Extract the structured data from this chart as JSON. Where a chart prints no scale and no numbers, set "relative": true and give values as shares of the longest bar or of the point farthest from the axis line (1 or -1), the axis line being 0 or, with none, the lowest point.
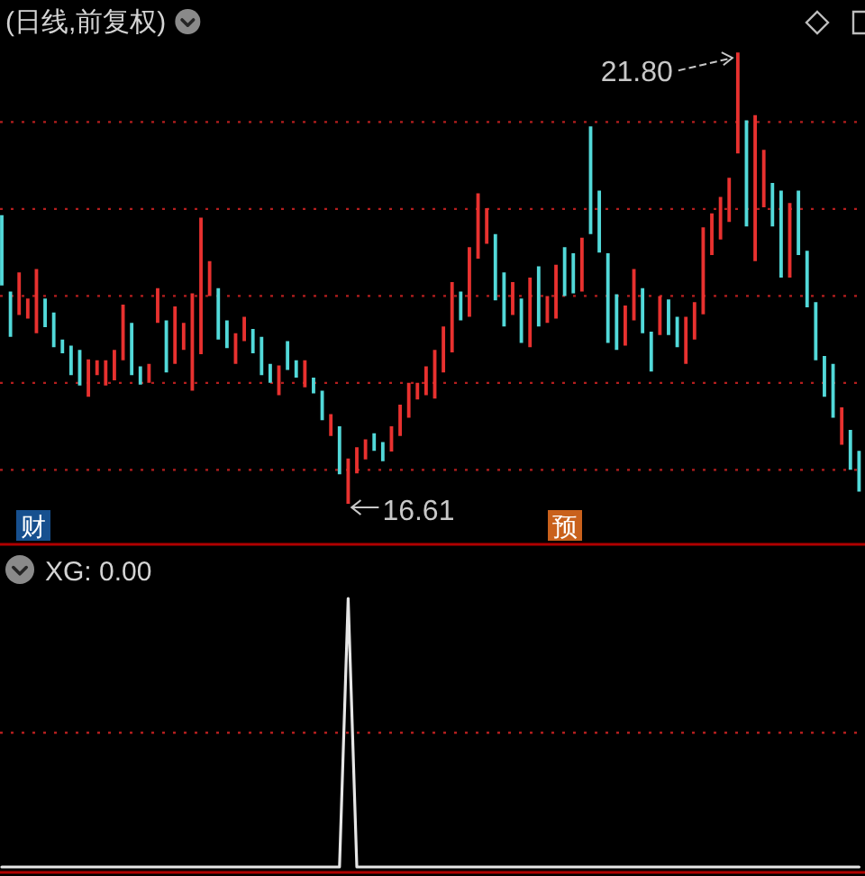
{
  "chart_data": [
    {
      "type": "candlestick",
      "title": "(日线,前复权)",
      "yticks": [
        {
          "value": 17,
          "label": null
        },
        {
          "value": 18,
          "label": null
        },
        {
          "value": 19,
          "label": null
        },
        {
          "value": 20,
          "label": null
        },
        {
          "value": 21,
          "label": null
        }
      ],
      "grid": "y",
      "annotations": [
        "21.80",
        "16.61",
        "财",
        "预"
      ],
      "categories": [
        null,
        null,
        null,
        null,
        null,
        null,
        null,
        null,
        null,
        null,
        null,
        null,
        null,
        null,
        null,
        null,
        null,
        null,
        null,
        null,
        null,
        null,
        null,
        null,
        null,
        null,
        null,
        null,
        null,
        null,
        null,
        null,
        null,
        null,
        null,
        null,
        null,
        null,
        null,
        null,
        null,
        null,
        null,
        null,
        null,
        null,
        null,
        null,
        null,
        null,
        null,
        null,
        null,
        null,
        null,
        null,
        null,
        null,
        null,
        null,
        null,
        null,
        null,
        null,
        null,
        null,
        null,
        null,
        null,
        null,
        null,
        null,
        null,
        null,
        null,
        null,
        null,
        null,
        null,
        null,
        null,
        null,
        null,
        null,
        null,
        null,
        null,
        null,
        null,
        null,
        null,
        null,
        null,
        null,
        null,
        null,
        null,
        null,
        null,
        null
      ],
      "ohlc": [
        [
          19.93,
          19.93,
          19.12,
          19.12
        ],
        [
          19.05,
          19.05,
          18.53,
          18.53
        ],
        [
          18.78,
          19.27,
          18.78,
          19.27
        ],
        [
          18.74,
          18.97,
          18.74,
          18.97
        ],
        [
          18.57,
          19.31,
          18.57,
          19.31
        ],
        [
          18.97,
          18.97,
          18.64,
          18.64
        ],
        [
          18.81,
          18.81,
          18.41,
          18.41
        ],
        [
          18.5,
          18.5,
          18.34,
          18.34
        ],
        [
          18.43,
          18.43,
          18.09,
          18.09
        ],
        [
          18.38,
          18.38,
          17.97,
          17.97
        ],
        [
          17.84,
          18.27,
          17.84,
          18.27
        ],
        [
          18.09,
          18.26,
          18.09,
          18.26
        ],
        [
          17.97,
          18.26,
          17.97,
          18.26
        ],
        [
          18.03,
          18.38,
          18.03,
          18.38
        ],
        [
          18.26,
          18.9,
          18.26,
          18.9
        ],
        [
          18.69,
          18.69,
          18.09,
          18.09
        ],
        [
          18.19,
          18.19,
          17.98,
          17.98
        ],
        [
          18.0,
          18.22,
          18.0,
          18.22
        ],
        [
          18.69,
          19.09,
          18.69,
          19.09
        ],
        [
          18.72,
          18.72,
          18.12,
          18.12
        ],
        [
          18.22,
          18.88,
          18.22,
          18.88
        ],
        [
          18.38,
          18.69,
          18.38,
          18.69
        ],
        [
          17.91,
          19.03,
          17.91,
          19.03
        ],
        [
          18.33,
          19.9,
          18.33,
          19.9
        ],
        [
          19.0,
          19.4,
          19.0,
          19.4
        ],
        [
          19.09,
          19.09,
          18.5,
          18.5
        ],
        [
          18.72,
          18.72,
          18.4,
          18.4
        ],
        [
          18.22,
          18.57,
          18.22,
          18.57
        ],
        [
          18.48,
          18.76,
          18.48,
          18.76
        ],
        [
          18.62,
          18.62,
          18.34,
          18.34
        ],
        [
          18.53,
          18.53,
          18.09,
          18.09
        ],
        [
          18.22,
          18.22,
          18.0,
          18.0
        ],
        [
          17.86,
          18.2,
          17.86,
          18.2
        ],
        [
          18.48,
          18.48,
          18.15,
          18.15
        ],
        [
          18.26,
          18.26,
          18.06,
          18.06
        ],
        [
          17.95,
          18.26,
          17.95,
          18.26
        ],
        [
          18.06,
          18.06,
          17.88,
          17.88
        ],
        [
          17.91,
          17.91,
          17.57,
          17.57
        ],
        [
          17.39,
          17.64,
          17.39,
          17.64
        ],
        [
          17.5,
          17.5,
          16.95,
          16.95
        ],
        [
          16.61,
          17.13,
          16.61,
          17.13
        ],
        [
          16.96,
          17.26,
          16.96,
          17.26
        ],
        [
          17.12,
          17.35,
          17.12,
          17.35
        ],
        [
          17.42,
          17.42,
          17.22,
          17.22
        ],
        [
          17.32,
          17.32,
          17.1,
          17.1
        ],
        [
          17.21,
          17.5,
          17.21,
          17.5
        ],
        [
          17.39,
          17.75,
          17.39,
          17.75
        ],
        [
          17.6,
          18.0,
          17.6,
          18.0
        ],
        [
          17.81,
          18.0,
          17.81,
          18.0
        ],
        [
          17.86,
          18.19,
          17.86,
          18.19
        ],
        [
          17.82,
          18.38,
          17.82,
          18.38
        ],
        [
          18.12,
          18.65,
          18.12,
          18.65
        ],
        [
          18.35,
          19.16,
          18.35,
          19.16
        ],
        [
          19.05,
          19.05,
          18.72,
          18.72
        ],
        [
          18.76,
          19.56,
          18.76,
          19.56
        ],
        [
          19.43,
          20.18,
          19.43,
          20.18
        ],
        [
          19.6,
          20.01,
          19.6,
          20.01
        ],
        [
          19.71,
          19.71,
          18.95,
          18.95
        ],
        [
          19.27,
          19.27,
          18.65,
          18.65
        ],
        [
          18.78,
          19.16,
          18.78,
          19.16
        ],
        [
          18.97,
          18.97,
          18.46,
          18.46
        ],
        [
          18.41,
          19.21,
          18.41,
          19.21
        ],
        [
          19.34,
          19.34,
          18.65,
          18.65
        ],
        [
          18.69,
          19.0,
          18.69,
          19.0
        ],
        [
          18.74,
          19.36,
          18.74,
          19.36
        ],
        [
          19.56,
          19.56,
          19.0,
          19.0
        ],
        [
          19.49,
          19.49,
          19.03,
          19.03
        ],
        [
          19.05,
          19.67,
          19.05,
          19.67
        ],
        [
          20.95,
          20.95,
          19.71,
          19.71
        ],
        [
          20.21,
          20.21,
          19.5,
          19.5
        ],
        [
          19.49,
          19.49,
          18.46,
          18.46
        ],
        [
          19.02,
          19.02,
          18.38,
          18.38
        ],
        [
          18.43,
          18.89,
          18.43,
          18.89
        ],
        [
          18.72,
          19.31,
          18.72,
          19.31
        ],
        [
          19.09,
          19.09,
          18.57,
          18.57
        ],
        [
          18.59,
          18.59,
          18.13,
          18.13
        ],
        [
          18.55,
          19.0,
          18.55,
          19.0
        ],
        [
          18.96,
          18.96,
          18.55,
          18.55
        ],
        [
          18.76,
          18.76,
          18.41,
          18.41
        ],
        [
          18.22,
          18.76,
          18.22,
          18.76
        ],
        [
          18.5,
          18.93,
          18.5,
          18.93
        ],
        [
          18.79,
          19.79,
          18.79,
          19.79
        ],
        [
          19.47,
          19.95,
          19.47,
          19.95
        ],
        [
          19.65,
          20.14,
          19.65,
          20.14
        ],
        [
          19.85,
          20.36,
          19.85,
          20.36
        ],
        [
          20.64,
          21.8,
          20.64,
          21.8
        ],
        [
          21.02,
          21.02,
          19.8,
          19.8
        ],
        [
          19.4,
          21.08,
          19.4,
          21.08
        ],
        [
          20.02,
          20.68,
          20.02,
          20.68
        ],
        [
          20.3,
          20.3,
          19.8,
          19.8
        ],
        [
          20.21,
          20.21,
          19.21,
          19.21
        ],
        [
          19.21,
          20.07,
          19.21,
          20.07
        ],
        [
          20.21,
          20.21,
          19.47,
          19.47
        ],
        [
          19.52,
          19.52,
          18.87,
          18.87
        ],
        [
          18.93,
          18.93,
          18.26,
          18.26
        ],
        [
          18.31,
          18.31,
          17.84,
          17.84
        ],
        [
          18.22,
          18.22,
          17.6,
          17.6
        ],
        [
          17.29,
          17.72,
          17.29,
          17.72
        ],
        [
          17.46,
          17.46,
          17.0,
          17.0
        ],
        [
          17.22,
          17.22,
          16.75,
          16.75
        ]
      ],
      "colors": [
        "#52d9d9",
        "#52d9d9",
        "#e8312f",
        "#e8312f",
        "#e8312f",
        "#52d9d9",
        "#52d9d9",
        "#52d9d9",
        "#52d9d9",
        "#52d9d9",
        "#e8312f",
        "#e8312f",
        "#e8312f",
        "#e8312f",
        "#e8312f",
        "#52d9d9",
        "#52d9d9",
        "#e8312f",
        "#e8312f",
        "#52d9d9",
        "#e8312f",
        "#e8312f",
        "#e8312f",
        "#e8312f",
        "#e8312f",
        "#52d9d9",
        "#52d9d9",
        "#e8312f",
        "#e8312f",
        "#52d9d9",
        "#52d9d9",
        "#52d9d9",
        "#e8312f",
        "#52d9d9",
        "#52d9d9",
        "#e8312f",
        "#52d9d9",
        "#52d9d9",
        "#e8312f",
        "#52d9d9",
        "#e8312f",
        "#e8312f",
        "#e8312f",
        "#52d9d9",
        "#52d9d9",
        "#e8312f",
        "#e8312f",
        "#e8312f",
        "#e8312f",
        "#e8312f",
        "#e8312f",
        "#e8312f",
        "#e8312f",
        "#52d9d9",
        "#e8312f",
        "#e8312f",
        "#e8312f",
        "#52d9d9",
        "#52d9d9",
        "#e8312f",
        "#52d9d9",
        "#e8312f",
        "#52d9d9",
        "#e8312f",
        "#e8312f",
        "#52d9d9",
        "#52d9d9",
        "#e8312f",
        "#52d9d9",
        "#52d9d9",
        "#52d9d9",
        "#52d9d9",
        "#e8312f",
        "#e8312f",
        "#52d9d9",
        "#52d9d9",
        "#e8312f",
        "#52d9d9",
        "#52d9d9",
        "#e8312f",
        "#e8312f",
        "#e8312f",
        "#e8312f",
        "#e8312f",
        "#e8312f",
        "#e8312f",
        "#52d9d9",
        "#e8312f",
        "#e8312f",
        "#52d9d9",
        "#52d9d9",
        "#e8312f",
        "#52d9d9",
        "#52d9d9",
        "#52d9d9",
        "#52d9d9",
        "#52d9d9",
        "#e8312f",
        "#52d9d9",
        "#52d9d9"
      ]
    },
    {
      "type": "line",
      "title": "XG: 0.00",
      "relative": true,
      "categories": [
        null,
        null,
        null,
        null,
        null,
        null,
        null,
        null,
        null,
        null,
        null,
        null,
        null,
        null,
        null,
        null,
        null,
        null,
        null,
        null,
        null,
        null,
        null,
        null,
        null,
        null,
        null,
        null,
        null,
        null,
        null,
        null,
        null,
        null,
        null,
        null,
        null,
        null,
        null,
        null,
        null,
        null,
        null,
        null,
        null,
        null,
        null,
        null,
        null,
        null,
        null,
        null,
        null,
        null,
        null,
        null,
        null,
        null,
        null,
        null,
        null,
        null,
        null,
        null,
        null,
        null,
        null,
        null,
        null,
        null,
        null,
        null,
        null,
        null,
        null,
        null,
        null,
        null,
        null,
        null,
        null,
        null,
        null,
        null,
        null,
        null,
        null,
        null,
        null,
        null,
        null,
        null,
        null,
        null,
        null,
        null,
        null,
        null,
        null,
        null
      ],
      "series": [
        {
          "color": "#e6e6e6",
          "values": [
            0,
            0,
            0,
            0,
            0,
            0,
            0,
            0,
            0,
            0,
            0,
            0,
            0,
            0,
            0,
            0,
            0,
            0,
            0,
            0,
            0,
            0,
            0,
            0,
            0,
            0,
            0,
            0,
            0,
            0,
            0,
            0,
            0,
            0,
            0,
            0,
            0,
            0,
            0,
            0,
            1,
            0,
            0,
            0,
            0,
            0,
            0,
            0,
            0,
            0,
            0,
            0,
            0,
            0,
            0,
            0,
            0,
            0,
            0,
            0,
            0,
            0,
            0,
            0,
            0,
            0,
            0,
            0,
            0,
            0,
            0,
            0,
            0,
            0,
            0,
            0,
            0,
            0,
            0,
            0,
            0,
            0,
            0,
            0,
            0,
            0,
            0,
            0,
            0,
            0,
            0,
            0,
            0,
            0,
            0,
            0,
            0,
            0,
            0,
            0
          ]
        }
      ],
      "ref_lines": [
        {
          "axis": "y",
          "value": 0.5,
          "color": "#b41e1e",
          "line_style": "dotted"
        }
      ]
    }
  ]
}
